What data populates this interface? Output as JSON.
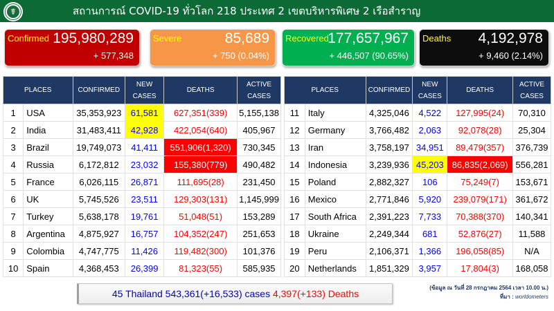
{
  "header": {
    "title": "สถานการณ์ COVID-19 ทั่วโลก 218 ประเทศ 2 เขตบริหารพิเศษ 2 เรือสำราญ",
    "logo_icon": "ministry-of-public-health-logo"
  },
  "cards": {
    "confirmed": {
      "label": "Confirmed",
      "value": "195,980,289",
      "delta": "+ 577,348",
      "color": "#c00000"
    },
    "severe": {
      "label": "Severe",
      "value": "85,689",
      "delta": "+ 750 (0.04%)",
      "color": "#f79646"
    },
    "recovered": {
      "label": "Recovered",
      "value": "177,657,967",
      "delta": "+ 446,507 (90.65%)",
      "color": "#00b050"
    },
    "deaths": {
      "label": "Deaths",
      "value": "4,192,978",
      "delta": "+ 9,460 (2.14%)",
      "color": "#0d0d0d"
    }
  },
  "table": {
    "headers": {
      "places": "PLACES",
      "confirmed": "CONFIRMED",
      "new_cases_1": "NEW",
      "new_cases_2": "CASES",
      "deaths": "DEATHS",
      "active_1": "ACTIVE",
      "active_2": "CASES"
    },
    "left": [
      {
        "rank": "1",
        "place": "USA",
        "confirmed": "35,353,923",
        "new": "61,581",
        "deaths": "627,351(339)",
        "active": "5,155,138"
      },
      {
        "rank": "2",
        "place": "India",
        "confirmed": "31,483,411",
        "new": "42,928",
        "deaths": "422,054(640)",
        "active": "405,967"
      },
      {
        "rank": "3",
        "place": "Brazil",
        "confirmed": "19,749,073",
        "new": "41,411",
        "deaths": "551,906(1,320)",
        "active": "730,345"
      },
      {
        "rank": "4",
        "place": "Russia",
        "confirmed": "6,172,812",
        "new": "23,032",
        "deaths": "155,380(779)",
        "active": "490,482"
      },
      {
        "rank": "5",
        "place": "France",
        "confirmed": "6,026,115",
        "new": "26,871",
        "deaths": "111,695(28)",
        "active": "231,450"
      },
      {
        "rank": "6",
        "place": "UK",
        "confirmed": "5,745,526",
        "new": "23,511",
        "deaths": "129,303(131)",
        "active": "1,145,999"
      },
      {
        "rank": "7",
        "place": "Turkey",
        "confirmed": "5,638,178",
        "new": "19,761",
        "deaths": "51,048(51)",
        "active": "153,289"
      },
      {
        "rank": "8",
        "place": "Argentina",
        "confirmed": "4,875,927",
        "new": "16,757",
        "deaths": "104,352(247)",
        "active": "251,653"
      },
      {
        "rank": "9",
        "place": "Colombia",
        "confirmed": "4,747,775",
        "new": "11,426",
        "deaths": "119,482(300)",
        "active": "101,376"
      },
      {
        "rank": "10",
        "place": "Spain",
        "confirmed": "4,368,453",
        "new": "26,399",
        "deaths": "81,323(55)",
        "active": "585,935"
      }
    ],
    "right": [
      {
        "rank": "11",
        "place": "Italy",
        "confirmed": "4,325,046",
        "new": "4,522",
        "deaths": "127,995(24)",
        "active": "70,310"
      },
      {
        "rank": "12",
        "place": "Germany",
        "confirmed": "3,766,482",
        "new": "2,063",
        "deaths": "92,078(28)",
        "active": "25,304"
      },
      {
        "rank": "13",
        "place": "Iran",
        "confirmed": "3,758,197",
        "new": "34,951",
        "deaths": "89,479(357)",
        "active": "376,739"
      },
      {
        "rank": "14",
        "place": "Indonesia",
        "confirmed": "3,239,936",
        "new": "45,203",
        "deaths": "86,835(2,069)",
        "active": "556,281"
      },
      {
        "rank": "15",
        "place": "Poland",
        "confirmed": "2,882,327",
        "new": "106",
        "deaths": "75,249(7)",
        "active": "153,671"
      },
      {
        "rank": "16",
        "place": "Mexico",
        "confirmed": "2,771,846",
        "new": "5,920",
        "deaths": "239,079(171)",
        "active": "361,672"
      },
      {
        "rank": "17",
        "place": "South Africa",
        "confirmed": "2,391,223",
        "new": "7,733",
        "deaths": "70,388(370)",
        "active": "140,341"
      },
      {
        "rank": "18",
        "place": "Ukraine",
        "confirmed": "2,249,344",
        "new": "681",
        "deaths": "52,876(27)",
        "active": "11,588"
      },
      {
        "rank": "19",
        "place": "Peru",
        "confirmed": "2,106,371",
        "new": "1,366",
        "deaths": "196,058(85)",
        "active": "N/A"
      },
      {
        "rank": "20",
        "place": "Netherlands",
        "confirmed": "1,851,329",
        "new": "3,957",
        "deaths": "17,804(3)",
        "active": "168,058"
      }
    ],
    "highlight_colors": {
      "yellow": "#ffff00",
      "red": "#ff0000"
    }
  },
  "thailand": {
    "cases_text": "45 Thailand 543,361(+16,533) cases",
    "deaths_text": "4,397(+133) Deaths"
  },
  "source": {
    "date_line": "(ข้อมูล ณ วันที่ 28 กรกฎาคม 2564 เวลา 10.00 น.)",
    "source_label": "ที่มา : ",
    "source_name": "worldometers"
  }
}
